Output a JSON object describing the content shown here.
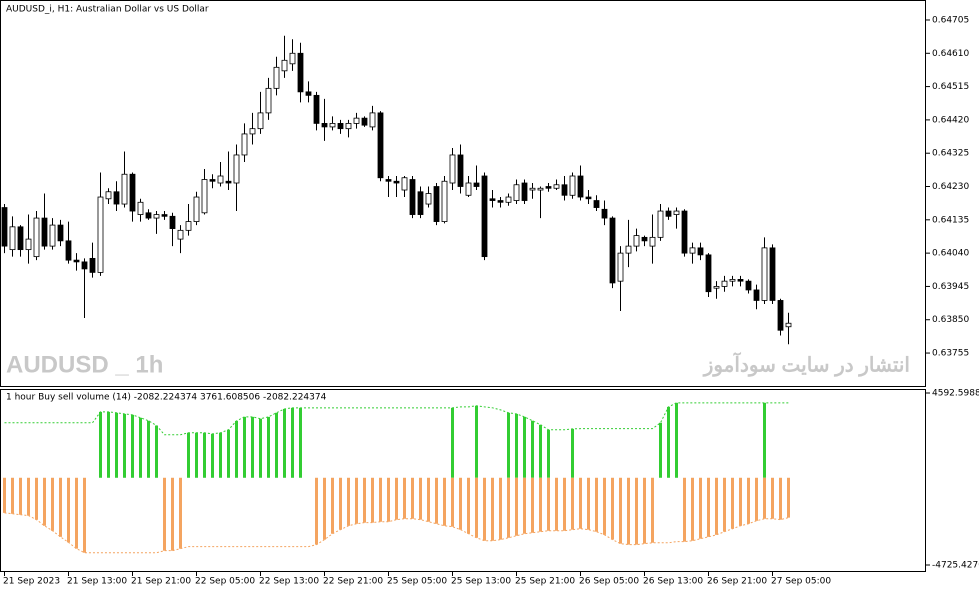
{
  "chart_data": [
    {
      "type": "candlestick",
      "title": "AUDUSD_i, H1: Australian Dollar vs US Dollar",
      "watermark": "AUDUSD _ 1h",
      "annotation": "انتشار در سایت سودآموز",
      "categories": [
        "21 Sep 2023",
        null,
        null,
        null,
        null,
        null,
        null,
        null,
        "21 Sep 13:00",
        null,
        null,
        null,
        null,
        null,
        null,
        null,
        "21 Sep 21:00",
        null,
        null,
        null,
        null,
        null,
        null,
        null,
        "22 Sep 05:00",
        null,
        null,
        null,
        null,
        null,
        null,
        null,
        "22 Sep 13:00",
        null,
        null,
        null,
        null,
        null,
        null,
        null,
        "22 Sep 21:00",
        null,
        null,
        null,
        null,
        null,
        null,
        null,
        "25 Sep 05:00",
        null,
        null,
        null,
        null,
        null,
        null,
        null,
        "25 Sep 13:00",
        null,
        null,
        null,
        null,
        null,
        null,
        null,
        "25 Sep 21:00",
        null,
        null,
        null,
        null,
        null,
        null,
        null,
        "26 Sep 05:00",
        null,
        null,
        null,
        null,
        null,
        null,
        null,
        "26 Sep 13:00",
        null,
        null,
        null,
        null,
        null,
        null,
        null,
        "26 Sep 21:00",
        null,
        null,
        null,
        null,
        null,
        null,
        null,
        "27 Sep 05:00",
        null,
        null
      ],
      "open": [
        0.6417,
        0.6405,
        0.64115,
        0.6405,
        0.6403,
        0.6414,
        0.6406,
        0.6412,
        0.64075,
        0.6402,
        0.64015,
        0.64025,
        0.63985,
        0.64195,
        0.64215,
        0.6418,
        0.64265,
        0.6415,
        0.64155,
        0.6414,
        0.6415,
        0.64145,
        0.6408,
        0.64105,
        0.6413,
        0.64155,
        0.6425,
        0.6424,
        0.64245,
        0.6424,
        0.6432,
        0.6438,
        0.64395,
        0.6444,
        0.6451,
        0.6456,
        0.6458,
        0.6461,
        0.645,
        0.6449,
        0.6441,
        0.644,
        0.6441,
        0.64395,
        0.6441,
        0.64425,
        0.644,
        0.6444,
        0.6425,
        0.64245,
        0.6422,
        0.6425,
        0.64215,
        0.6418,
        0.6423,
        0.6413,
        0.6424,
        0.6432,
        0.64205,
        0.6424,
        0.6426,
        0.64195,
        0.6419,
        0.64185,
        0.6419,
        0.6424,
        0.6422,
        0.6422,
        0.6423,
        0.64225,
        0.64235,
        0.64205,
        0.6426,
        0.642,
        0.6419,
        0.64165,
        0.6414,
        0.6396,
        0.6404,
        0.6406,
        0.64085,
        0.6406,
        0.64085,
        0.6416,
        0.6415,
        0.6416,
        0.6404,
        0.64055,
        0.64035,
        0.6394,
        0.63945,
        0.6396,
        0.63965,
        0.6396,
        0.63935,
        0.63905,
        0.64055,
        0.63905,
        0.6383
      ],
      "high": [
        0.6418,
        0.64145,
        0.6412,
        0.6415,
        0.6416,
        0.6421,
        0.6414,
        0.64135,
        0.6413,
        0.6404,
        0.64025,
        0.6407,
        0.6427,
        0.64225,
        0.64245,
        0.6433,
        0.6427,
        0.64195,
        0.64165,
        0.6416,
        0.6416,
        0.64155,
        0.6412,
        0.6418,
        0.64215,
        0.6428,
        0.64265,
        0.643,
        0.6433,
        0.6435,
        0.6441,
        0.6444,
        0.645,
        0.6454,
        0.646,
        0.6466,
        0.6465,
        0.6464,
        0.6453,
        0.645,
        0.6448,
        0.6443,
        0.6442,
        0.6442,
        0.6444,
        0.6443,
        0.6446,
        0.64445,
        0.6426,
        0.6426,
        0.6426,
        0.6426,
        0.6423,
        0.6423,
        0.6424,
        0.6426,
        0.6434,
        0.6435,
        0.6426,
        0.6429,
        0.6427,
        0.6422,
        0.642,
        0.6421,
        0.6425,
        0.6425,
        0.6424,
        0.6423,
        0.6424,
        0.6425,
        0.6426,
        0.6427,
        0.6429,
        0.6422,
        0.64205,
        0.6419,
        0.64145,
        0.6406,
        0.64135,
        0.6411,
        0.6409,
        0.6415,
        0.6418,
        0.6417,
        0.6417,
        0.64165,
        0.6407,
        0.6407,
        0.6404,
        0.6396,
        0.63975,
        0.63975,
        0.63975,
        0.63965,
        0.6395,
        0.64085,
        0.64065,
        0.6391,
        0.6387
      ],
      "low": [
        0.6404,
        0.6403,
        0.6403,
        0.6401,
        0.6402,
        0.6405,
        0.6405,
        0.6406,
        0.6401,
        0.6399,
        0.63855,
        0.6397,
        0.63975,
        0.6418,
        0.6416,
        0.6417,
        0.6413,
        0.6413,
        0.64135,
        0.64095,
        0.64135,
        0.6406,
        0.6404,
        0.6409,
        0.6412,
        0.6415,
        0.64225,
        0.6423,
        0.6422,
        0.6416,
        0.643,
        0.6435,
        0.6438,
        0.6442,
        0.6449,
        0.6454,
        0.6456,
        0.6447,
        0.6447,
        0.6439,
        0.6436,
        0.6439,
        0.6438,
        0.6437,
        0.64395,
        0.644,
        0.6439,
        0.64245,
        0.642,
        0.642,
        0.642,
        0.6414,
        0.6414,
        0.6417,
        0.6412,
        0.64125,
        0.6422,
        0.6421,
        0.642,
        0.6422,
        0.6402,
        0.6417,
        0.6417,
        0.64175,
        0.6418,
        0.6418,
        0.64195,
        0.6414,
        0.64215,
        0.6422,
        0.6419,
        0.64195,
        0.6419,
        0.6418,
        0.6416,
        0.6412,
        0.6394,
        0.63875,
        0.64,
        0.64045,
        0.6406,
        0.6401,
        0.64075,
        0.64135,
        0.6411,
        0.6403,
        0.6401,
        0.6402,
        0.63915,
        0.6391,
        0.6393,
        0.63945,
        0.63945,
        0.63925,
        0.6388,
        0.63895,
        0.63895,
        0.63805,
        0.6378
      ],
      "close": [
        0.6406,
        0.64115,
        0.6405,
        0.6408,
        0.6414,
        0.6406,
        0.6412,
        0.64075,
        0.6402,
        0.64015,
        0.63995,
        0.63985,
        0.642,
        0.64215,
        0.6418,
        0.64265,
        0.6416,
        0.64185,
        0.6414,
        0.6415,
        0.64145,
        0.6411,
        0.64105,
        0.6413,
        0.642,
        0.6425,
        0.64245,
        0.6426,
        0.6424,
        0.6432,
        0.6438,
        0.64395,
        0.6444,
        0.6451,
        0.6457,
        0.6459,
        0.6461,
        0.645,
        0.6449,
        0.6441,
        0.644,
        0.6441,
        0.64395,
        0.6441,
        0.64425,
        0.64405,
        0.6444,
        0.64255,
        0.64245,
        0.6424,
        0.64255,
        0.6415,
        0.6415,
        0.6421,
        0.6413,
        0.64245,
        0.6432,
        0.6423,
        0.6424,
        0.6423,
        0.6403,
        0.6419,
        0.64185,
        0.642,
        0.64235,
        0.6419,
        0.64225,
        0.64225,
        0.64225,
        0.64235,
        0.64205,
        0.6426,
        0.642,
        0.64195,
        0.6417,
        0.6414,
        0.63955,
        0.6404,
        0.6406,
        0.6409,
        0.64075,
        0.64085,
        0.6416,
        0.64145,
        0.6416,
        0.6404,
        0.64055,
        0.64035,
        0.6393,
        0.63945,
        0.6396,
        0.63965,
        0.6396,
        0.63935,
        0.63905,
        0.64055,
        0.63905,
        0.6382,
        0.6384
      ],
      "ylim": [
        0.63661,
        0.64762
      ],
      "yticks": [
        0.64705,
        {
          "value": 0.6461,
          "label": "0.64610"
        },
        0.64515,
        {
          "value": 0.6442,
          "label": "0.64420"
        },
        0.64325,
        {
          "value": 0.6423,
          "label": "0.64230"
        },
        0.64135,
        {
          "value": 0.6404,
          "label": "0.64040"
        },
        0.63945,
        {
          "value": 0.6385,
          "label": "0.63850"
        },
        0.63755
      ],
      "bull_color": "#ffffff",
      "bear_color": "#000000"
    },
    {
      "type": "bar",
      "title": "1 hour Buy sell volume (14) -2082.224374 3761.608506 -2082.224374",
      "ylim": [
        -4725.42703,
        4592.59883
      ],
      "yticks": [
        -4725.42703,
        4592.59883
      ],
      "series": [
        {
          "type": "bar",
          "color": "#32cd32",
          "values": [
            null,
            null,
            null,
            null,
            null,
            null,
            null,
            null,
            null,
            null,
            null,
            null,
            3570,
            3570,
            3520,
            3460,
            3410,
            3250,
            3090,
            2830,
            null,
            null,
            null,
            2440,
            2440,
            2440,
            2380,
            2440,
            2600,
            3080,
            3300,
            3300,
            3200,
            3300,
            3520,
            3730,
            3790,
            3790,
            null,
            null,
            null,
            null,
            null,
            null,
            null,
            null,
            null,
            null,
            null,
            null,
            null,
            null,
            null,
            null,
            null,
            null,
            3790,
            null,
            null,
            3900,
            null,
            null,
            null,
            3520,
            3460,
            3300,
            3090,
            2870,
            2600,
            null,
            null,
            2650,
            null,
            null,
            null,
            null,
            null,
            null,
            null,
            null,
            null,
            null,
            2980,
            3840,
            4060,
            null,
            null,
            null,
            null,
            null,
            null,
            null,
            null,
            null,
            null,
            4060,
            null,
            null,
            null
          ]
        },
        {
          "type": "bar",
          "color": "#f4a460",
          "values": [
            -1900,
            -1950,
            -2000,
            -2050,
            -2270,
            -2600,
            -2870,
            -3200,
            -3500,
            -3840,
            -4060,
            null,
            null,
            null,
            null,
            null,
            null,
            null,
            null,
            null,
            -3950,
            -3950,
            -3840,
            null,
            null,
            null,
            null,
            null,
            null,
            null,
            null,
            null,
            null,
            null,
            null,
            null,
            null,
            null,
            null,
            -3620,
            -3350,
            -3030,
            -2810,
            -2600,
            -2490,
            -2430,
            -2430,
            -2380,
            -2380,
            -2270,
            -2220,
            -2220,
            -2270,
            -2380,
            -2490,
            -2600,
            -2650,
            -2810,
            -3030,
            -3250,
            -3410,
            -3410,
            -3350,
            -3250,
            -3140,
            -3030,
            -2980,
            -2920,
            -2870,
            -2870,
            -2870,
            -2810,
            -2760,
            -2810,
            -2920,
            -3090,
            -3350,
            -3570,
            -3620,
            -3620,
            -3570,
            -3520,
            null,
            null,
            null,
            -3460,
            -3410,
            -3300,
            -3200,
            -3090,
            -2920,
            -2760,
            -2600,
            -2490,
            -2330,
            -2220,
            -2220,
            -2270,
            -2160
          ]
        },
        {
          "type": "line",
          "dashed": true,
          "color": "#32cd32",
          "values": [
            2980,
            2980,
            2980,
            2980,
            2980,
            2980,
            2980,
            2980,
            2980,
            2980,
            2980,
            2980,
            3570,
            3570,
            3520,
            3460,
            3410,
            3250,
            3090,
            2830,
            2330,
            2330,
            2330,
            2440,
            2440,
            2440,
            2380,
            2440,
            2600,
            3080,
            3300,
            3300,
            3200,
            3300,
            3520,
            3730,
            3790,
            3790,
            3790,
            3790,
            3790,
            3790,
            3790,
            3790,
            3790,
            3790,
            3790,
            3790,
            3790,
            3790,
            3790,
            3790,
            3790,
            3790,
            3790,
            3790,
            3790,
            3840,
            3840,
            3900,
            3840,
            3790,
            3680,
            3520,
            3460,
            3300,
            3090,
            2870,
            2600,
            2600,
            2600,
            2650,
            2660,
            2660,
            2660,
            2660,
            2660,
            2660,
            2660,
            2660,
            2660,
            2660,
            2980,
            3840,
            4060,
            4060,
            4060,
            4060,
            4060,
            4060,
            4060,
            4060,
            4060,
            4060,
            4060,
            4060,
            4060,
            4060,
            4060
          ]
        },
        {
          "type": "line",
          "dashed": true,
          "color": "#f4a460",
          "values": [
            -1900,
            -1950,
            -2000,
            -2050,
            -2270,
            -2600,
            -2870,
            -3200,
            -3500,
            -3840,
            -4060,
            -4060,
            -4060,
            -4060,
            -4060,
            -4060,
            -4060,
            -4060,
            -4060,
            -4060,
            -3950,
            -3950,
            -3840,
            -3730,
            -3730,
            -3730,
            -3730,
            -3730,
            -3730,
            -3730,
            -3730,
            -3730,
            -3730,
            -3730,
            -3730,
            -3730,
            -3730,
            -3730,
            -3730,
            -3620,
            -3350,
            -3030,
            -2810,
            -2600,
            -2490,
            -2430,
            -2430,
            -2380,
            -2380,
            -2270,
            -2220,
            -2220,
            -2270,
            -2380,
            -2490,
            -2600,
            -2650,
            -2810,
            -3030,
            -3250,
            -3410,
            -3410,
            -3350,
            -3250,
            -3140,
            -3030,
            -2980,
            -2920,
            -2870,
            -2870,
            -2870,
            -2810,
            -2760,
            -2810,
            -2920,
            -3090,
            -3350,
            -3570,
            -3620,
            -3620,
            -3570,
            -3520,
            -3520,
            -3520,
            -3460,
            -3460,
            -3410,
            -3300,
            -3200,
            -3090,
            -2920,
            -2760,
            -2600,
            -2490,
            -2330,
            -2220,
            -2220,
            -2270,
            -2160
          ]
        }
      ]
    }
  ]
}
